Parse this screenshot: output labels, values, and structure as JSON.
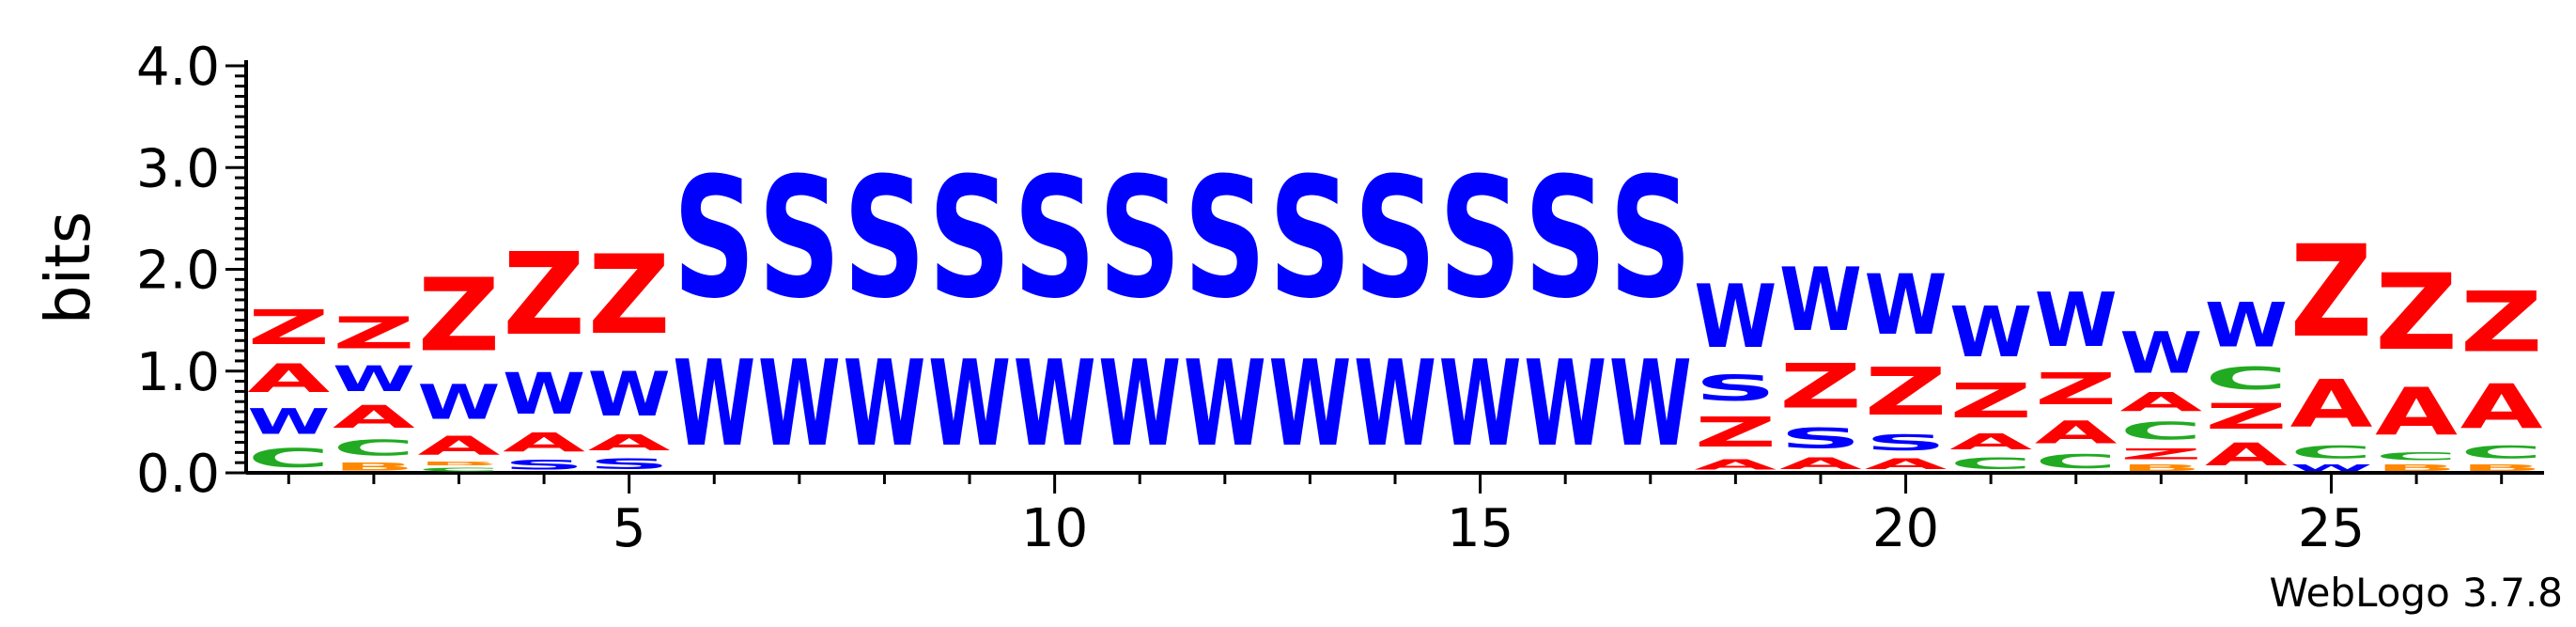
{
  "chart_data": {
    "type": "sequence-logo",
    "ylabel": "bits",
    "ylim": [
      0,
      4
    ],
    "yticks": [
      "0.0",
      "1.0",
      "2.0",
      "3.0",
      "4.0"
    ],
    "xlim": [
      0.5,
      27.5
    ],
    "xticks": [
      "5",
      "10",
      "15",
      "20",
      "25"
    ],
    "credit": "WebLogo 3.7.8",
    "colors": {
      "S": "#0000ff",
      "W": "#0000ff",
      "Z": "#ff0000",
      "A": "#ff0000",
      "C": "#22aa22",
      "B": "#ff8800"
    },
    "positions": [
      {
        "pos": 1,
        "stack": [
          [
            "C",
            0.3
          ],
          [
            "W",
            0.4
          ],
          [
            "A",
            0.45
          ],
          [
            "Z",
            0.55
          ]
        ]
      },
      {
        "pos": 2,
        "stack": [
          [
            "B",
            0.12
          ],
          [
            "C",
            0.25
          ],
          [
            "A",
            0.35
          ],
          [
            "W",
            0.4
          ],
          [
            "Z",
            0.5
          ]
        ]
      },
      {
        "pos": 3,
        "stack": [
          [
            "C",
            0.06
          ],
          [
            "B",
            0.06
          ],
          [
            "A",
            0.3
          ],
          [
            "W",
            0.55
          ],
          [
            "Z",
            1.15
          ]
        ]
      },
      {
        "pos": 4,
        "stack": [
          [
            "S",
            0.15
          ],
          [
            "A",
            0.3
          ],
          [
            "W",
            0.65
          ],
          [
            "Z",
            1.3
          ]
        ]
      },
      {
        "pos": 5,
        "stack": [
          [
            "S",
            0.17
          ],
          [
            "A",
            0.25
          ],
          [
            "W",
            0.7
          ],
          [
            "Z",
            1.25
          ]
        ]
      },
      {
        "pos": 6,
        "stack": [
          [
            "W",
            1.35
          ],
          [
            "S",
            1.9
          ]
        ]
      },
      {
        "pos": 7,
        "stack": [
          [
            "W",
            1.35
          ],
          [
            "S",
            1.9
          ]
        ]
      },
      {
        "pos": 8,
        "stack": [
          [
            "W",
            1.35
          ],
          [
            "S",
            1.9
          ]
        ]
      },
      {
        "pos": 9,
        "stack": [
          [
            "W",
            1.35
          ],
          [
            "S",
            1.9
          ]
        ]
      },
      {
        "pos": 10,
        "stack": [
          [
            "W",
            1.35
          ],
          [
            "S",
            1.9
          ]
        ]
      },
      {
        "pos": 11,
        "stack": [
          [
            "W",
            1.35
          ],
          [
            "S",
            1.9
          ]
        ]
      },
      {
        "pos": 12,
        "stack": [
          [
            "W",
            1.35
          ],
          [
            "S",
            1.9
          ]
        ]
      },
      {
        "pos": 13,
        "stack": [
          [
            "W",
            1.35
          ],
          [
            "S",
            1.9
          ]
        ]
      },
      {
        "pos": 14,
        "stack": [
          [
            "W",
            1.35
          ],
          [
            "S",
            1.9
          ]
        ]
      },
      {
        "pos": 15,
        "stack": [
          [
            "W",
            1.35
          ],
          [
            "S",
            1.9
          ]
        ]
      },
      {
        "pos": 16,
        "stack": [
          [
            "W",
            1.35
          ],
          [
            "S",
            1.9
          ]
        ]
      },
      {
        "pos": 17,
        "stack": [
          [
            "W",
            1.35
          ],
          [
            "S",
            1.9
          ]
        ]
      },
      {
        "pos": 18,
        "stack": [
          [
            "A",
            0.16
          ],
          [
            "Z",
            0.47
          ],
          [
            "S",
            0.4
          ],
          [
            "W",
            1.0
          ]
        ]
      },
      {
        "pos": 19,
        "stack": [
          [
            "A",
            0.18
          ],
          [
            "S",
            0.32
          ],
          [
            "Z",
            0.7
          ],
          [
            "W",
            1.0
          ]
        ]
      },
      {
        "pos": 20,
        "stack": [
          [
            "A",
            0.17
          ],
          [
            "S",
            0.25
          ],
          [
            "Z",
            0.75
          ],
          [
            "W",
            0.95
          ]
        ]
      },
      {
        "pos": 21,
        "stack": [
          [
            "C",
            0.18
          ],
          [
            "A",
            0.25
          ],
          [
            "Z",
            0.55
          ],
          [
            "W",
            0.8
          ]
        ]
      },
      {
        "pos": 22,
        "stack": [
          [
            "C",
            0.22
          ],
          [
            "A",
            0.35
          ],
          [
            "Z",
            0.5
          ],
          [
            "W",
            0.85
          ]
        ]
      },
      {
        "pos": 23,
        "stack": [
          [
            "B",
            0.1
          ],
          [
            "Z",
            0.17
          ],
          [
            "C",
            0.28
          ],
          [
            "A",
            0.3
          ],
          [
            "W",
            0.65
          ]
        ]
      },
      {
        "pos": 24,
        "stack": [
          [
            "A",
            0.35
          ],
          [
            "Z",
            0.4
          ],
          [
            "C",
            0.35
          ],
          [
            "W",
            0.7
          ]
        ]
      },
      {
        "pos": 25,
        "stack": [
          [
            "W",
            0.1
          ],
          [
            "C",
            0.2
          ],
          [
            "A",
            0.75
          ],
          [
            "Z",
            1.45
          ]
        ]
      },
      {
        "pos": 26,
        "stack": [
          [
            "B",
            0.1
          ],
          [
            "C",
            0.12
          ],
          [
            "A",
            0.75
          ],
          [
            "Z",
            1.2
          ]
        ]
      },
      {
        "pos": 27,
        "stack": [
          [
            "B",
            0.1
          ],
          [
            "C",
            0.2
          ],
          [
            "A",
            0.7
          ],
          [
            "Z",
            0.95
          ]
        ]
      }
    ]
  }
}
